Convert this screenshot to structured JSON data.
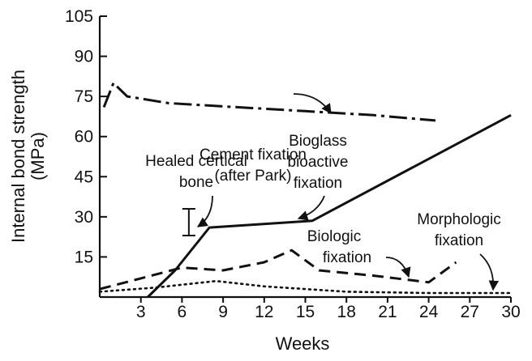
{
  "chart_data": {
    "type": "line",
    "title": "",
    "xlabel": "Weeks",
    "ylabel_line1": "Internal bond strength",
    "ylabel_line2": "(MPa)",
    "xlim": [
      0,
      30
    ],
    "ylim": [
      0,
      105
    ],
    "x_ticks": [
      3,
      6,
      9,
      12,
      15,
      18,
      21,
      24,
      27,
      30
    ],
    "y_ticks": [
      15,
      30,
      45,
      60,
      75,
      90,
      105
    ],
    "grid": false,
    "legend": "none",
    "series": [
      {
        "name": "Cement fixation",
        "style": "dash-dot",
        "points": [
          [
            0.3,
            71
          ],
          [
            1.0,
            80
          ],
          [
            2.0,
            75
          ],
          [
            5.0,
            72.5
          ],
          [
            10.0,
            71
          ],
          [
            15.0,
            69.5
          ],
          [
            20.0,
            68
          ],
          [
            24.5,
            66
          ]
        ]
      },
      {
        "name": "Bioglass bioactive fixation",
        "style": "solid",
        "points": [
          [
            3.5,
            0
          ],
          [
            5.5,
            10
          ],
          [
            8.0,
            26
          ],
          [
            15.5,
            28.5
          ],
          [
            30.0,
            68
          ]
        ]
      },
      {
        "name": "Biologic fixation",
        "style": "dashed",
        "points": [
          [
            0,
            3
          ],
          [
            3.0,
            7
          ],
          [
            6.0,
            11
          ],
          [
            9.0,
            10
          ],
          [
            12.0,
            13
          ],
          [
            14.0,
            17.5
          ],
          [
            16.0,
            10
          ],
          [
            20.0,
            8
          ],
          [
            24.0,
            5.5
          ],
          [
            26.0,
            13
          ]
        ]
      },
      {
        "name": "Morphologic fixation",
        "style": "dotted",
        "points": [
          [
            0,
            2
          ],
          [
            4.0,
            3.5
          ],
          [
            8.5,
            6
          ],
          [
            12.0,
            4
          ],
          [
            18.0,
            2
          ],
          [
            24.0,
            1.5
          ],
          [
            30.0,
            1.5
          ]
        ]
      }
    ],
    "healed_bone_range": {
      "x": 6.5,
      "y_low": 23,
      "y_high": 33
    },
    "annotations": {
      "cement_line1": "Cement fixation",
      "cement_line2": "(after Park)",
      "bioglass_line1": "Bioglass",
      "bioglass_line2": "bioactive",
      "bioglass_line3": "fixation",
      "healed_line1": "Healed certical",
      "healed_line2": "bone",
      "biologic_line1": "Biologic",
      "biologic_line2": "fixation",
      "morphologic_line1": "Morphologic",
      "morphologic_line2": "fixation"
    }
  }
}
